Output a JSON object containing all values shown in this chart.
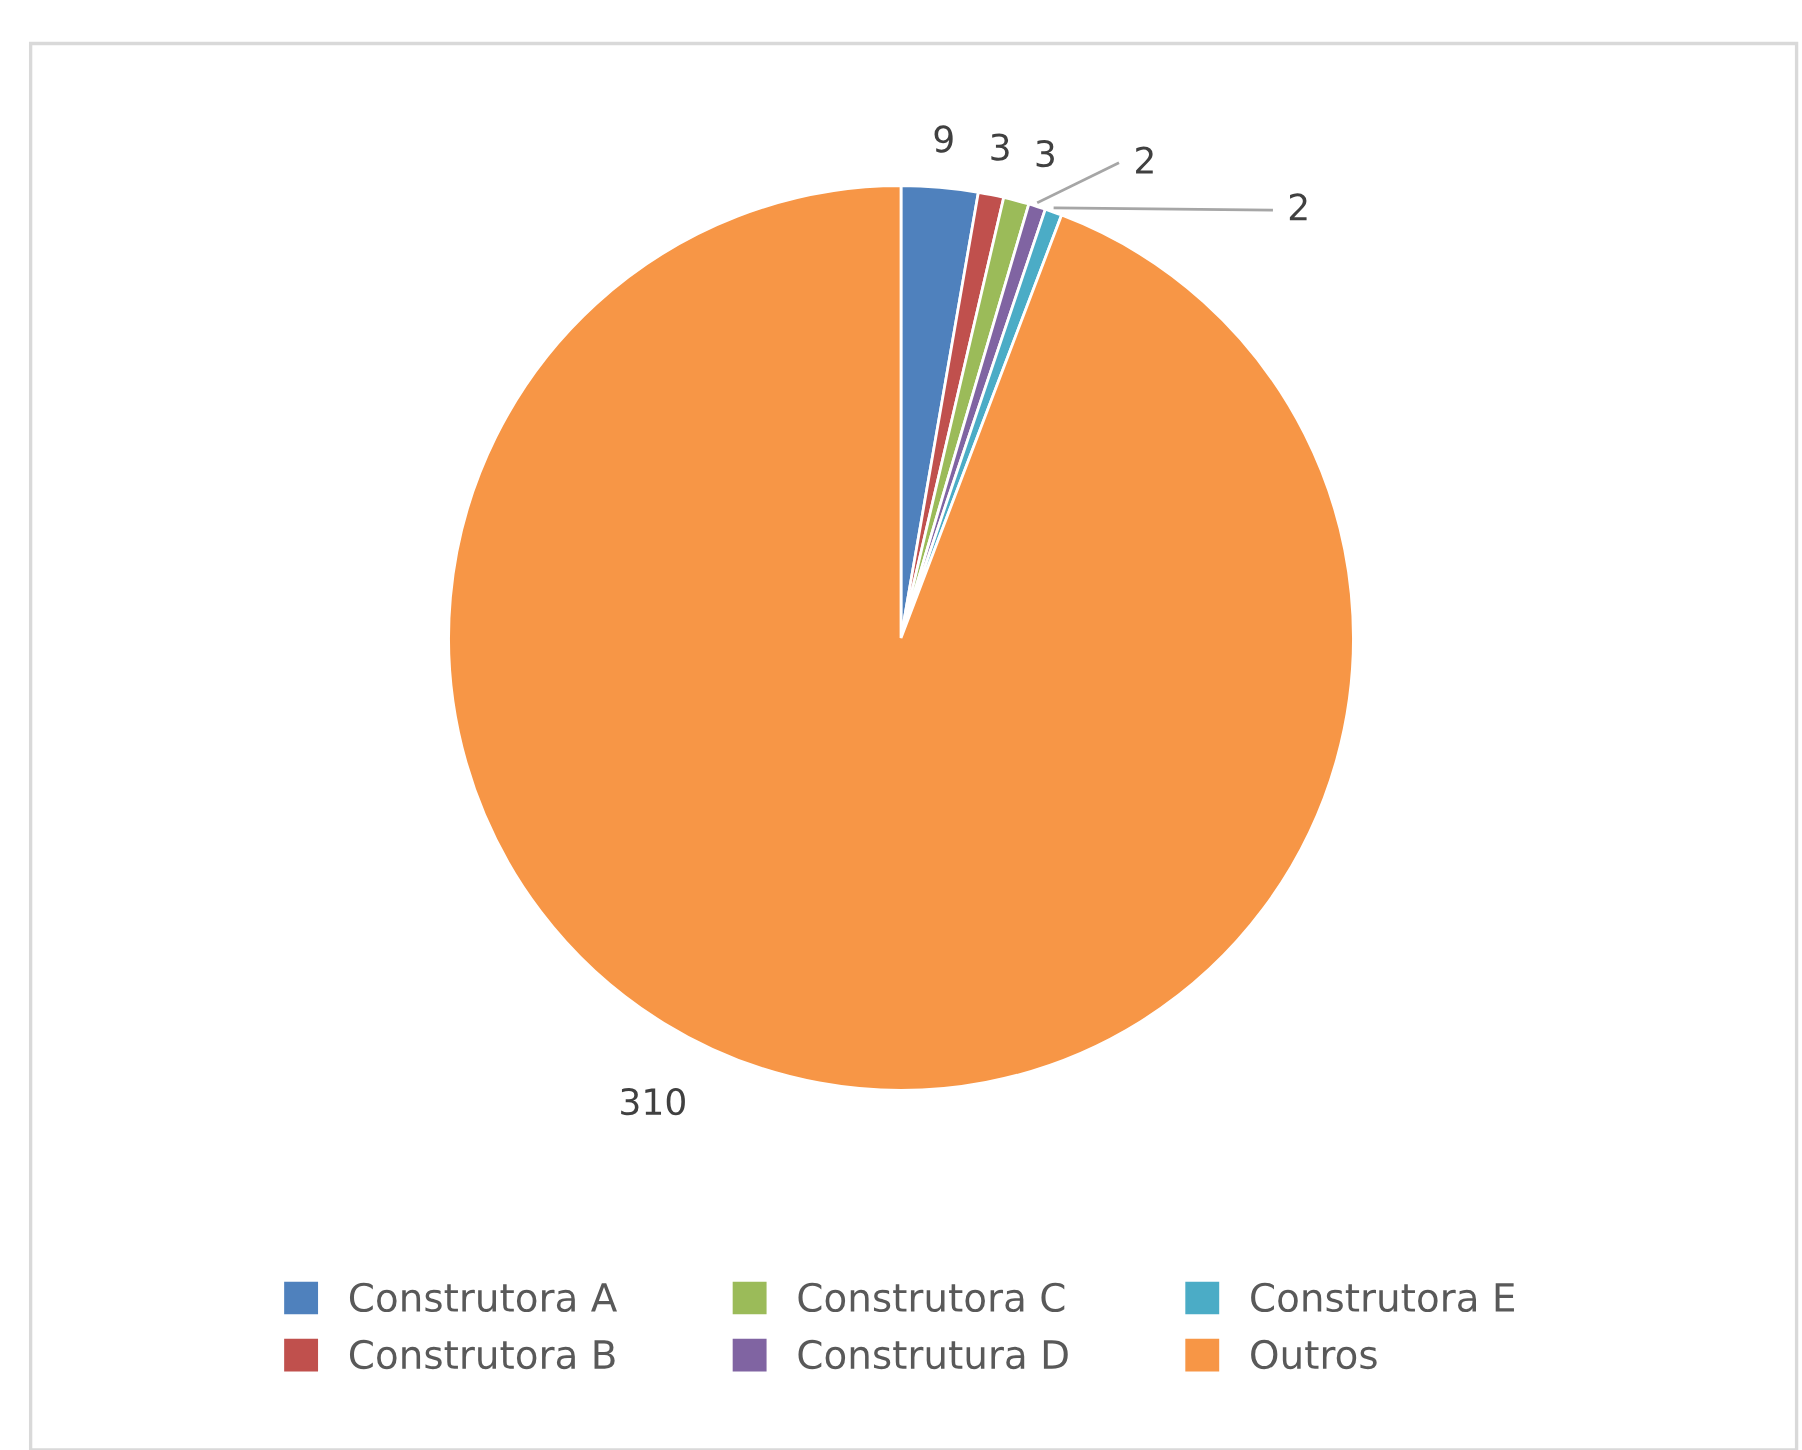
{
  "chart_data": {
    "type": "pie",
    "categories": [
      "Construtora A",
      "Construtora B",
      "Construtora C",
      "Construtura D",
      "Construtora E",
      "Outros"
    ],
    "values": [
      9,
      3,
      3,
      2,
      2,
      310
    ],
    "colors": [
      "#4f81bd",
      "#c0504d",
      "#9bbb59",
      "#8064a2",
      "#4bacc6",
      "#f79646"
    ],
    "data_labels": true,
    "legend": "bottom"
  }
}
